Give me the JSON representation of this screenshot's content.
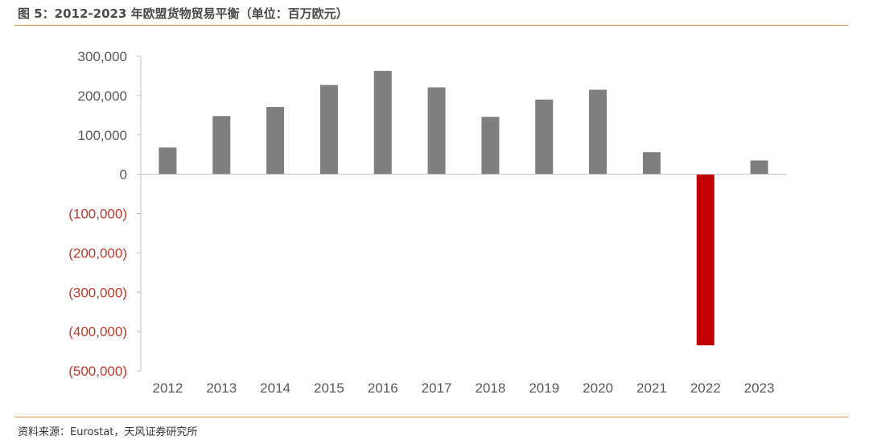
{
  "figure": {
    "title": "图 5：2012-2023 年欧盟货物贸易平衡（单位：百万欧元）",
    "source": "资料来源：Eurostat，天风证券研究所"
  },
  "colors": {
    "positive_bar": "#7f7f7f",
    "negative_bar": "#c00000",
    "negative_tick": "#c0392b",
    "tick": "#595959",
    "axis": "#bfbfbf",
    "rule": "#d79b5a"
  },
  "chart_data": {
    "type": "bar",
    "categories": [
      "2012",
      "2013",
      "2014",
      "2015",
      "2016",
      "2017",
      "2018",
      "2019",
      "2020",
      "2021",
      "2022",
      "2023"
    ],
    "values": [
      68000,
      148000,
      171000,
      227000,
      263000,
      221000,
      146000,
      190000,
      215000,
      56000,
      -435000,
      35000
    ],
    "title": "",
    "xlabel": "",
    "ylabel": "",
    "ylim": [
      -500000,
      300000
    ],
    "yticks": [
      300000,
      200000,
      100000,
      0,
      -100000,
      -200000,
      -300000,
      -400000,
      -500000
    ],
    "ytick_labels": [
      "300,000",
      "200,000",
      "100,000",
      "0",
      "(100,000)",
      "(200,000)",
      "(300,000)",
      "(400,000)",
      "(500,000)"
    ],
    "grid": false,
    "legend": "none"
  }
}
